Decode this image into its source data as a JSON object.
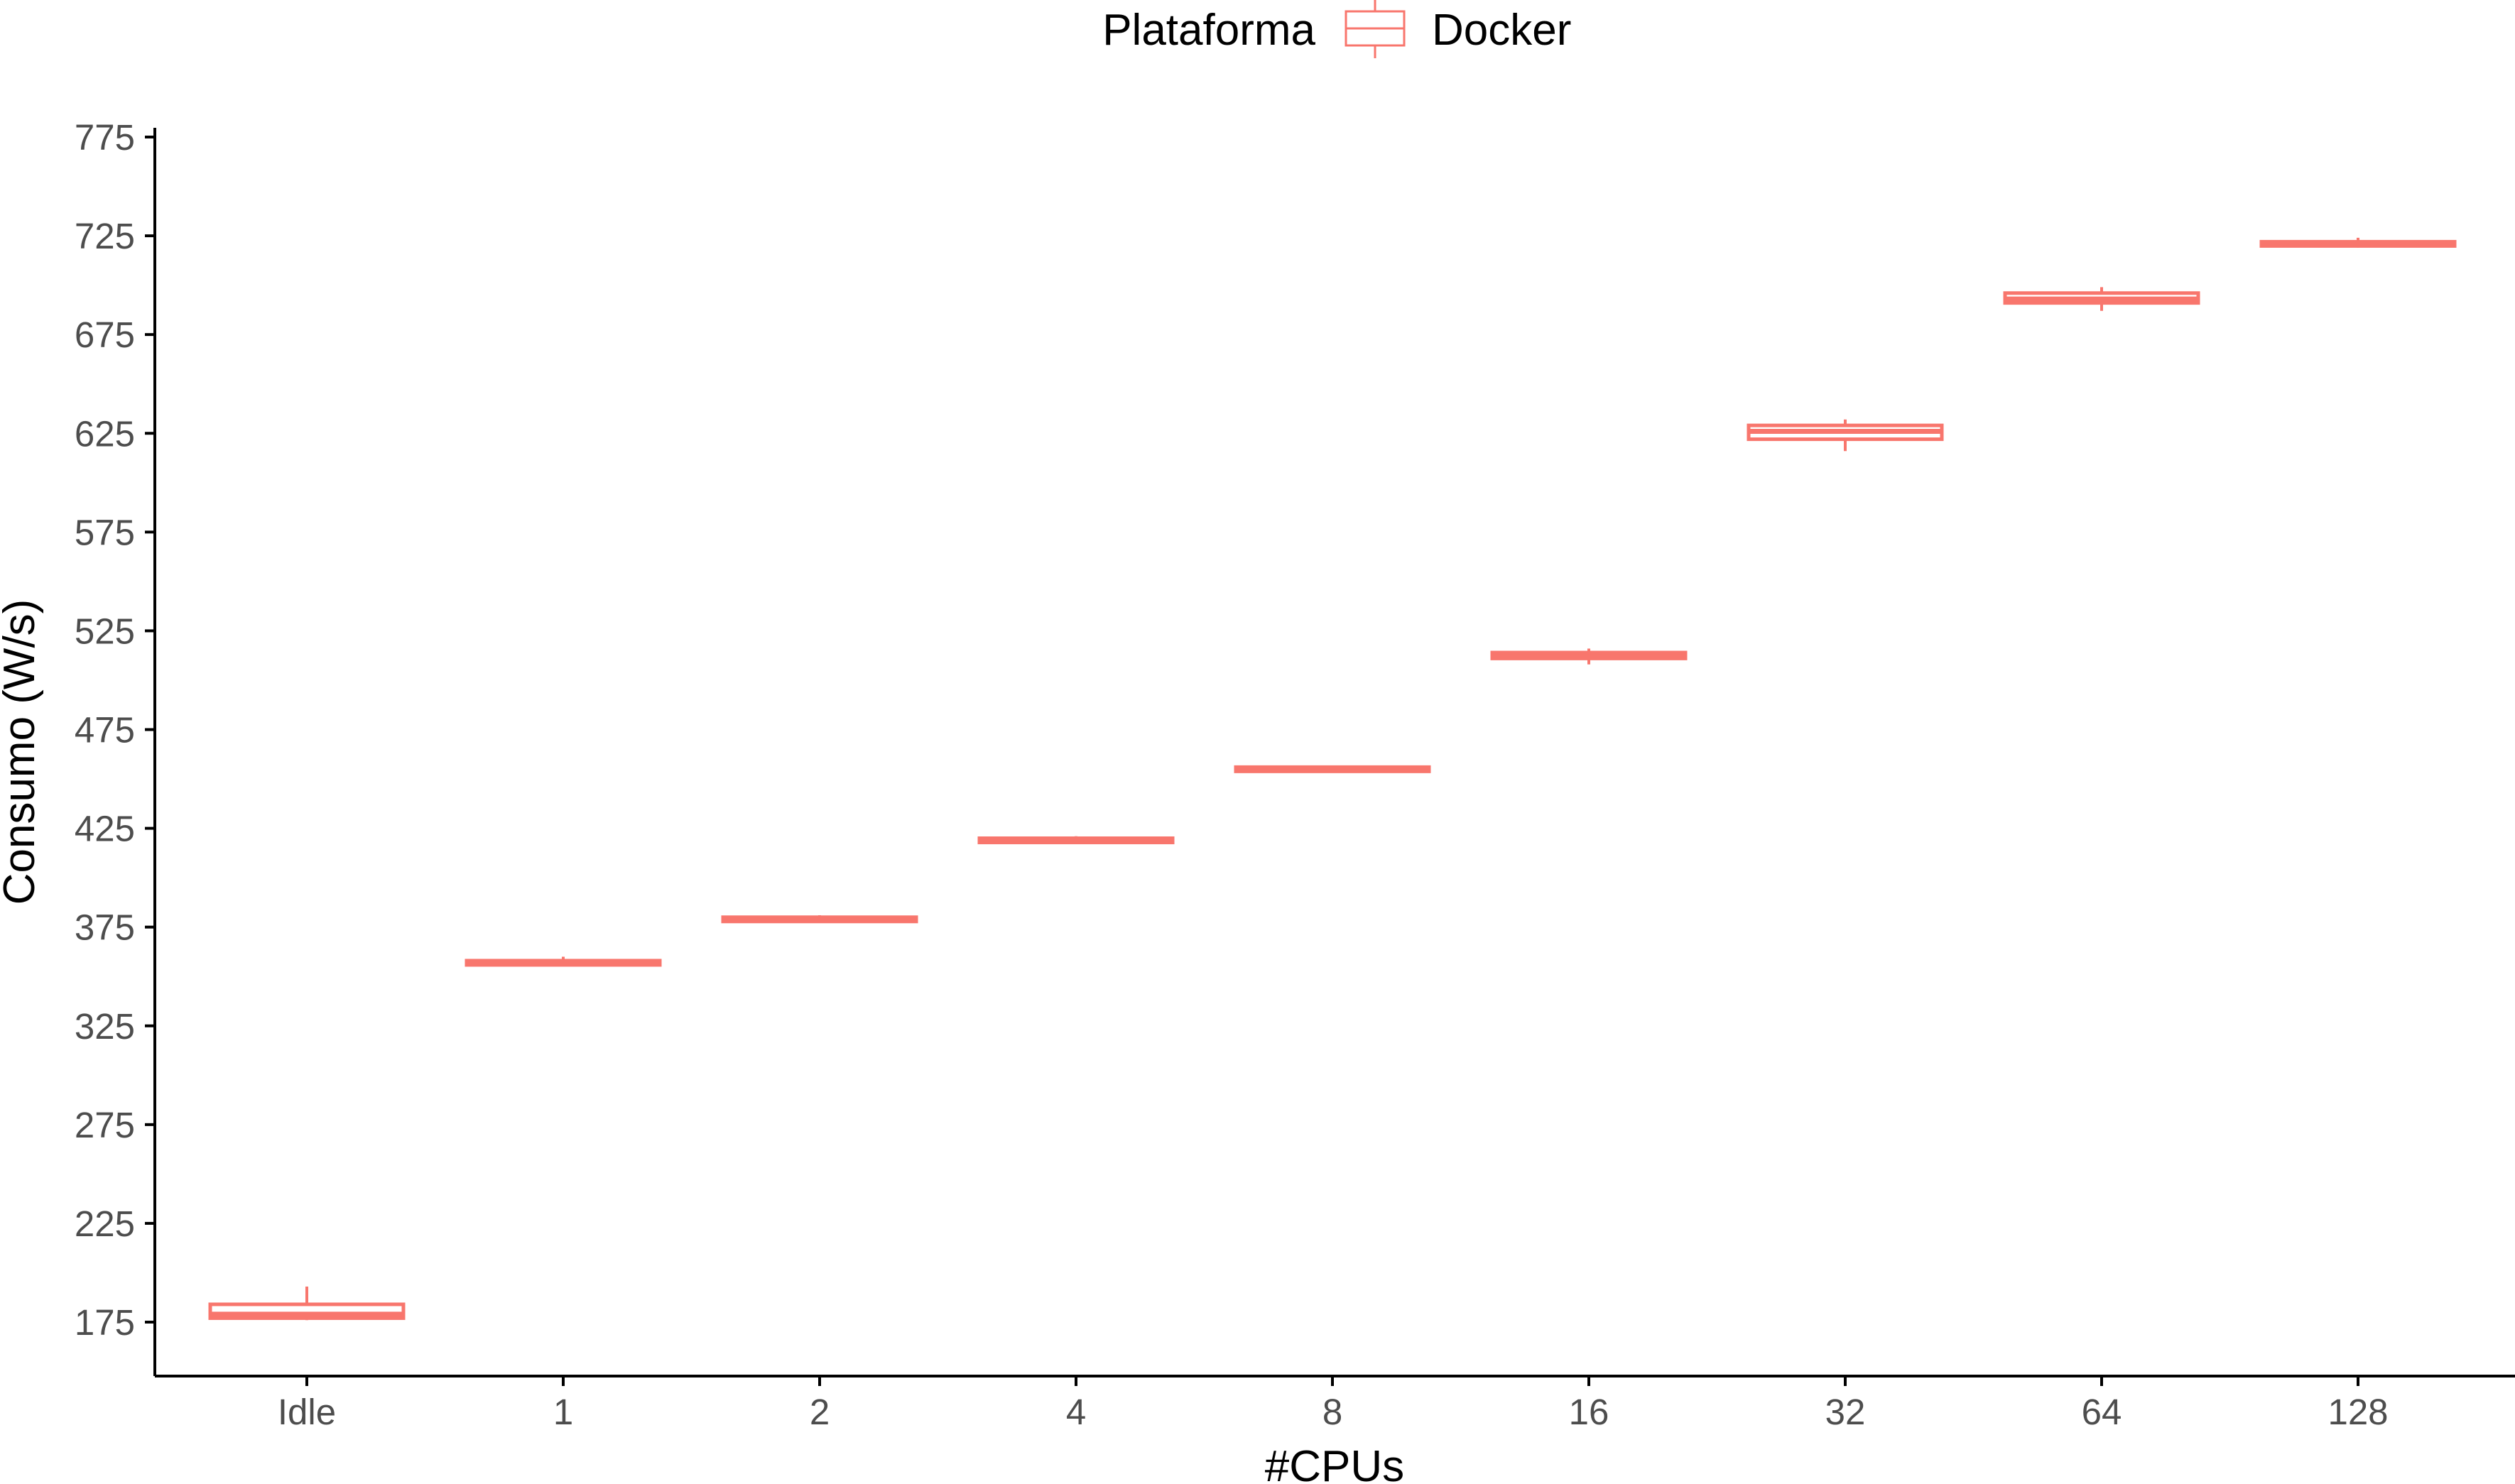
{
  "chart_data": {
    "type": "boxplot",
    "xlabel": "#CPUs",
    "ylabel": "Consumo (W/s)",
    "categories": [
      "Idle",
      "1",
      "2",
      "4",
      "8",
      "16",
      "32",
      "64",
      "128"
    ],
    "y_ticks": [
      175,
      225,
      275,
      325,
      375,
      425,
      475,
      525,
      575,
      625,
      675,
      725,
      775
    ],
    "ylim": [
      147,
      790
    ],
    "grid": false,
    "legend": {
      "title": "Plataforma",
      "position": "top",
      "entries": [
        "Docker"
      ]
    },
    "colors": {
      "series": "#F8766D",
      "axis": "#000000",
      "tick_text": "#4d4d4d"
    },
    "series": [
      {
        "name": "Docker",
        "boxes": [
          {
            "category": "Idle",
            "min": 176,
            "q1": 177,
            "median": 179,
            "q3": 184,
            "max": 193
          },
          {
            "category": "1",
            "min": 356,
            "q1": 357,
            "median": 357.5,
            "q3": 358,
            "max": 360
          },
          {
            "category": "2",
            "min": 378,
            "q1": 379,
            "median": 379.5,
            "q3": 380,
            "max": 381
          },
          {
            "category": "4",
            "min": 418,
            "q1": 419,
            "median": 419.5,
            "q3": 420,
            "max": 421
          },
          {
            "category": "8",
            "min": 454,
            "q1": 454.5,
            "median": 455,
            "q3": 456,
            "max": 456.5
          },
          {
            "category": "16",
            "min": 508,
            "q1": 511,
            "median": 512,
            "q3": 514,
            "max": 516
          },
          {
            "category": "32",
            "min": 616,
            "q1": 622,
            "median": 626,
            "q3": 629,
            "max": 632
          },
          {
            "category": "64",
            "min": 687,
            "q1": 691,
            "median": 693,
            "q3": 696,
            "max": 699
          },
          {
            "category": "128",
            "min": 719,
            "q1": 720,
            "median": 721,
            "q3": 722,
            "max": 724
          }
        ]
      }
    ]
  }
}
